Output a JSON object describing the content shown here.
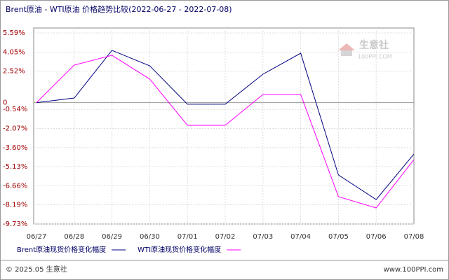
{
  "chart_data": {
    "type": "line",
    "title": "Brent原油 - WTI原油 价格趋势比较(2022-06-27 - 2022-07-08)",
    "categories": [
      "06/27",
      "06/28",
      "06/29",
      "06/30",
      "07/01",
      "07/02",
      "07/03",
      "07/04",
      "07/05",
      "07/06",
      "07/08"
    ],
    "series": [
      {
        "name": "Brent原油现货价格变化幅度",
        "color": "#000080",
        "values": [
          0,
          0.37,
          4.19,
          2.95,
          -0.13,
          -0.13,
          2.28,
          3.96,
          -5.8,
          -7.77,
          -4.12
        ]
      },
      {
        "name": "WTI原油现货价格变化幅度",
        "color": "#ff00ff",
        "values": [
          0,
          3.01,
          3.79,
          1.89,
          -1.82,
          -1.82,
          0.65,
          0.65,
          -7.54,
          -8.44,
          -4.57
        ]
      }
    ],
    "ylim": [
      -9.73,
      5.59
    ],
    "yticks": [
      {
        "value": 5.59,
        "label": "5.59%"
      },
      {
        "value": 4.05,
        "label": "4.05%"
      },
      {
        "value": 2.52,
        "label": "2.52%"
      },
      0,
      {
        "value": -0.54,
        "label": "-0.54%"
      },
      {
        "value": -2.07,
        "label": "-2.07%"
      },
      {
        "value": -3.6,
        "label": "-3.60%"
      },
      {
        "value": -5.13,
        "label": "-5.13%"
      },
      {
        "value": -6.66,
        "label": "-6.66%"
      },
      {
        "value": -8.19,
        "label": "-8.19%"
      },
      {
        "value": -9.73,
        "label": "-9.73%"
      }
    ],
    "grid": true
  },
  "watermark": {
    "name": "生意社",
    "site": "100PPI.COM"
  },
  "footer": {
    "copyright": "© 2025.05 生意社",
    "site": "www.100PPI.com"
  }
}
